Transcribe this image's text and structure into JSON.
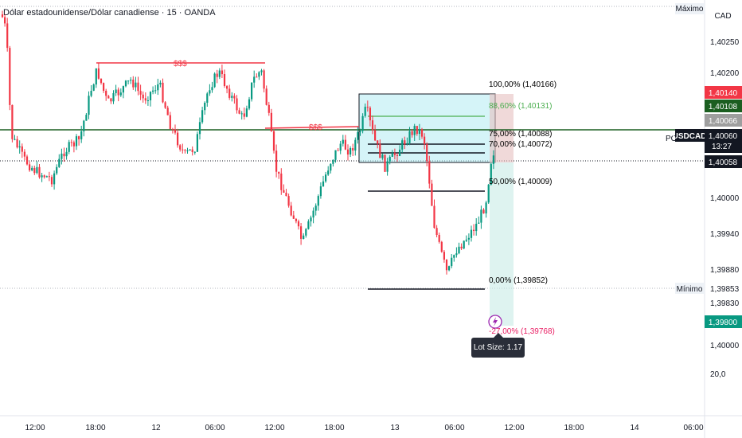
{
  "header": {
    "symbol_title": "Dólar estadounidense/Dólar canadiense · 15 · OANDA"
  },
  "price_axis": {
    "currency": "CAD",
    "max_label": "Máximo",
    "min_label": "Mínimo",
    "ticks": [
      "1,40250",
      "1,40200",
      "1,40000",
      "1,39940",
      "1,39880",
      "1,39830",
      "1,40000",
      "20,0"
    ],
    "tags": {
      "red": "1,40140",
      "green": "1,40108",
      "gray": "1,40066",
      "symbol": "USDCAD",
      "last": "1,40060",
      "countdown": "13:27",
      "cursor": "1,40058",
      "min": "1,39853",
      "teal": "1,39800"
    },
    "colors": {
      "red": "#f23645",
      "green": "#1b5e20",
      "gray": "#9e9e9e",
      "teal": "#089981",
      "dark": "#131722"
    }
  },
  "time_axis": {
    "ticks": [
      "12:00",
      "18:00",
      "12",
      "06:00",
      "12:00",
      "18:00",
      "13",
      "06:00",
      "12:00",
      "18:00",
      "14",
      "06:00"
    ]
  },
  "drawings": {
    "liquidity_label_1": "$$$",
    "liquidity_label_2": "$$$",
    "pos_label": "PO",
    "fib_levels": [
      {
        "label": "100,00% (1,40166)",
        "color": "#131722"
      },
      {
        "label": "88,60% (1,40131)",
        "color": "#4caf50"
      },
      {
        "label": "75,00% (1,40088)",
        "color": "#131722"
      },
      {
        "label": "70,00% (1,40072)",
        "color": "#131722"
      },
      {
        "label": "50,00% (1,40009)",
        "color": "#131722"
      },
      {
        "label": "0,00% (1,39852)",
        "color": "#131722"
      },
      {
        "label": "-27,00% (1,39768)",
        "color": "#e91e63"
      }
    ],
    "lot_size": "Lot Size: 1.17",
    "lightning_icon": "lightning-icon"
  },
  "chart_data": {
    "type": "candlestick",
    "title": "Dólar estadounidense/Dólar canadiense · 15 · OANDA",
    "y_range": [
      1.3976,
      1.4029
    ],
    "x_range": [
      "2024-11-11 09:00",
      "2024-11-14 06:00"
    ],
    "horizontal_lines": [
      1.40066,
      1.40058,
      1.39853
    ],
    "fib_retracement": {
      "high": 1.40166,
      "low": 1.39852
    },
    "series": [
      {
        "name": "USDCAD",
        "close_last": 1.4006
      }
    ]
  }
}
